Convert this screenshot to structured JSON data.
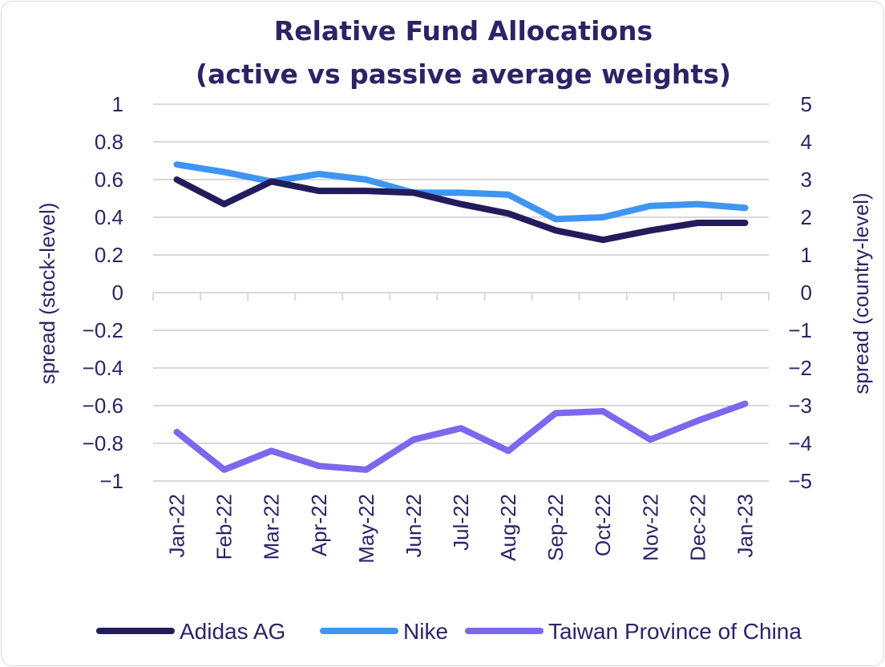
{
  "chart_data": {
    "type": "line",
    "title": "Relative Fund Allocations",
    "subtitle": "(active vs passive average weights)",
    "categories": [
      "Jan-22",
      "Feb-22",
      "Mar-22",
      "Apr-22",
      "May-22",
      "Jun-22",
      "Jul-22",
      "Aug-22",
      "Sep-22",
      "Oct-22",
      "Nov-22",
      "Dec-22",
      "Jan-23"
    ],
    "ylabel": "spread (stock-level)",
    "y2label": "spread (country-level)",
    "ylim": [
      -1,
      1
    ],
    "y2lim": [
      -5,
      5
    ],
    "yticks": [
      "1",
      "0.8",
      "0.6",
      "0.4",
      "0.2",
      "0",
      "−0.2",
      "−0.4",
      "−0.6",
      "−0.8",
      "−1"
    ],
    "y2ticks": [
      "5",
      "4",
      "3",
      "2",
      "1",
      "0",
      "−1",
      "−2",
      "−3",
      "−4",
      "−5"
    ],
    "grid": true,
    "legend_position": "bottom",
    "series": [
      {
        "name": "Adidas AG",
        "axis": "left",
        "color": "#231c5c",
        "values": [
          0.6,
          0.47,
          0.59,
          0.54,
          0.54,
          0.53,
          0.47,
          0.42,
          0.33,
          0.28,
          0.33,
          0.37,
          0.37
        ]
      },
      {
        "name": "Nike",
        "axis": "left",
        "color": "#3f95f0",
        "values": [
          0.68,
          0.64,
          0.59,
          0.63,
          0.6,
          0.53,
          0.53,
          0.52,
          0.39,
          0.4,
          0.46,
          0.47,
          0.45
        ]
      },
      {
        "name": "Taiwan Province of China",
        "axis": "right",
        "color": "#7b68ee",
        "values": [
          -3.7,
          -4.7,
          -4.2,
          -4.6,
          -4.7,
          -3.9,
          -3.6,
          -4.2,
          -3.2,
          -3.15,
          -3.9,
          -3.4,
          -2.95
        ]
      }
    ]
  }
}
